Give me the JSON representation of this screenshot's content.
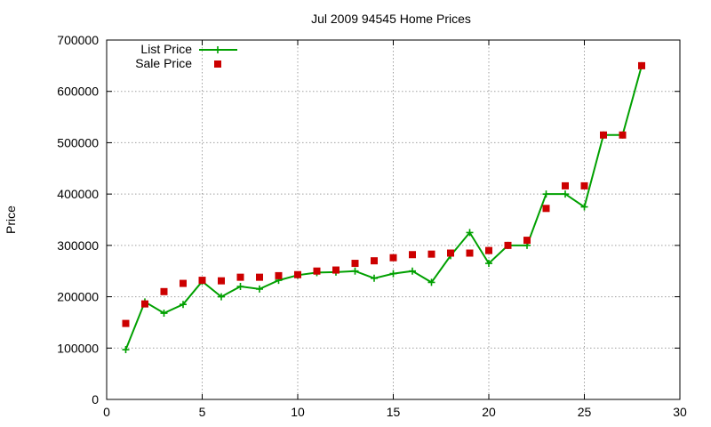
{
  "chart_data": {
    "type": "line",
    "title": "Jul 2009 94545 Home Prices",
    "xlabel": "",
    "ylabel": "Price",
    "xlim": [
      0,
      30
    ],
    "ylim": [
      0,
      700000
    ],
    "x_ticks": [
      "0",
      "5",
      "10",
      "15",
      "20",
      "25",
      "30"
    ],
    "y_ticks": [
      "0",
      "100000",
      "200000",
      "300000",
      "400000",
      "500000",
      "600000",
      "700000"
    ],
    "grid": true,
    "legend_position": "top-left",
    "x": [
      1,
      2,
      3,
      4,
      5,
      6,
      7,
      8,
      9,
      10,
      11,
      12,
      13,
      14,
      15,
      16,
      17,
      18,
      19,
      20,
      21,
      22,
      23,
      24,
      25,
      26,
      27,
      28
    ],
    "series": [
      {
        "name": "List Price",
        "style": "line with plus markers",
        "color": "#00a000",
        "values": [
          97000,
          190000,
          168000,
          185000,
          230000,
          200000,
          220000,
          215000,
          232000,
          242000,
          247000,
          248000,
          250000,
          236000,
          245000,
          250000,
          228000,
          280000,
          325000,
          265000,
          300000,
          300000,
          400000,
          400000,
          375000,
          515000,
          515000,
          650000
        ]
      },
      {
        "name": "Sale Price",
        "style": "square markers",
        "color": "#cc0000",
        "values": [
          148000,
          186000,
          210000,
          226000,
          232000,
          231000,
          238000,
          238000,
          241000,
          243000,
          250000,
          252000,
          265000,
          270000,
          276000,
          282000,
          283000,
          285000,
          285000,
          290000,
          300000,
          310000,
          372000,
          416000,
          416000,
          515000,
          515000,
          650000
        ]
      }
    ]
  }
}
